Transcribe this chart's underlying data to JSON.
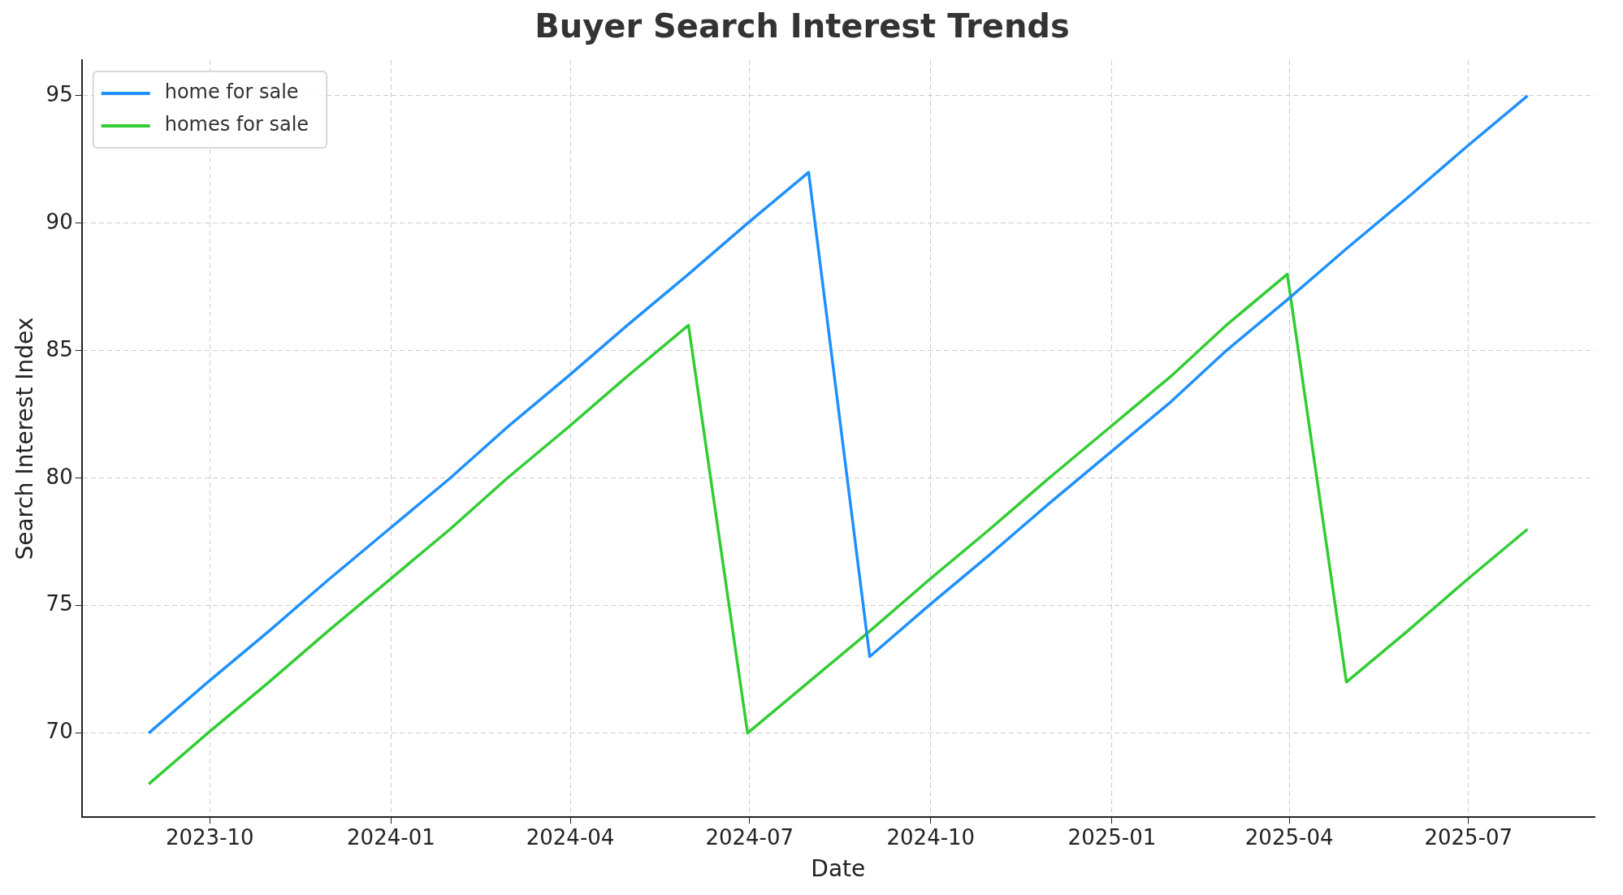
{
  "chart_data": {
    "type": "line",
    "title": "Buyer Search Interest Trends",
    "xlabel": "Date",
    "ylabel": "Search Interest Index",
    "x": [
      "2023-08-31",
      "2023-09-30",
      "2023-10-31",
      "2023-11-30",
      "2023-12-31",
      "2024-01-31",
      "2024-02-29",
      "2024-03-31",
      "2024-04-30",
      "2024-05-31",
      "2024-06-30",
      "2024-07-31",
      "2024-08-31",
      "2024-09-30",
      "2024-10-31",
      "2024-11-30",
      "2024-12-31",
      "2025-01-31",
      "2025-02-28",
      "2025-03-31",
      "2025-04-30",
      "2025-05-31",
      "2025-06-30",
      "2025-07-31"
    ],
    "series": [
      {
        "name": "home for sale",
        "color": "#1e90ff",
        "values": [
          70,
          72,
          74,
          76,
          78,
          80,
          82,
          84,
          86,
          88,
          90,
          92,
          73,
          75,
          77,
          79,
          81,
          83,
          85,
          87,
          89,
          91,
          93,
          95
        ]
      },
      {
        "name": "homes for sale",
        "color": "#32cd32",
        "values": [
          68,
          70,
          72,
          74,
          76,
          78,
          80,
          82,
          84,
          86,
          70,
          72,
          74,
          76,
          78,
          80,
          82,
          84,
          86,
          88,
          72,
          74,
          76,
          78
        ]
      }
    ],
    "xlim": [
      "2023-07-28",
      "2025-09-03"
    ],
    "xticks": [
      "2023-10",
      "2024-01",
      "2024-04",
      "2024-07",
      "2024-10",
      "2025-01",
      "2025-04",
      "2025-07"
    ],
    "ylim": [
      66.7,
      96.4
    ],
    "yticks": [
      70,
      75,
      80,
      85,
      90,
      95
    ],
    "grid": true,
    "legend": "top left",
    "line_style": "solid",
    "marker": "none"
  }
}
